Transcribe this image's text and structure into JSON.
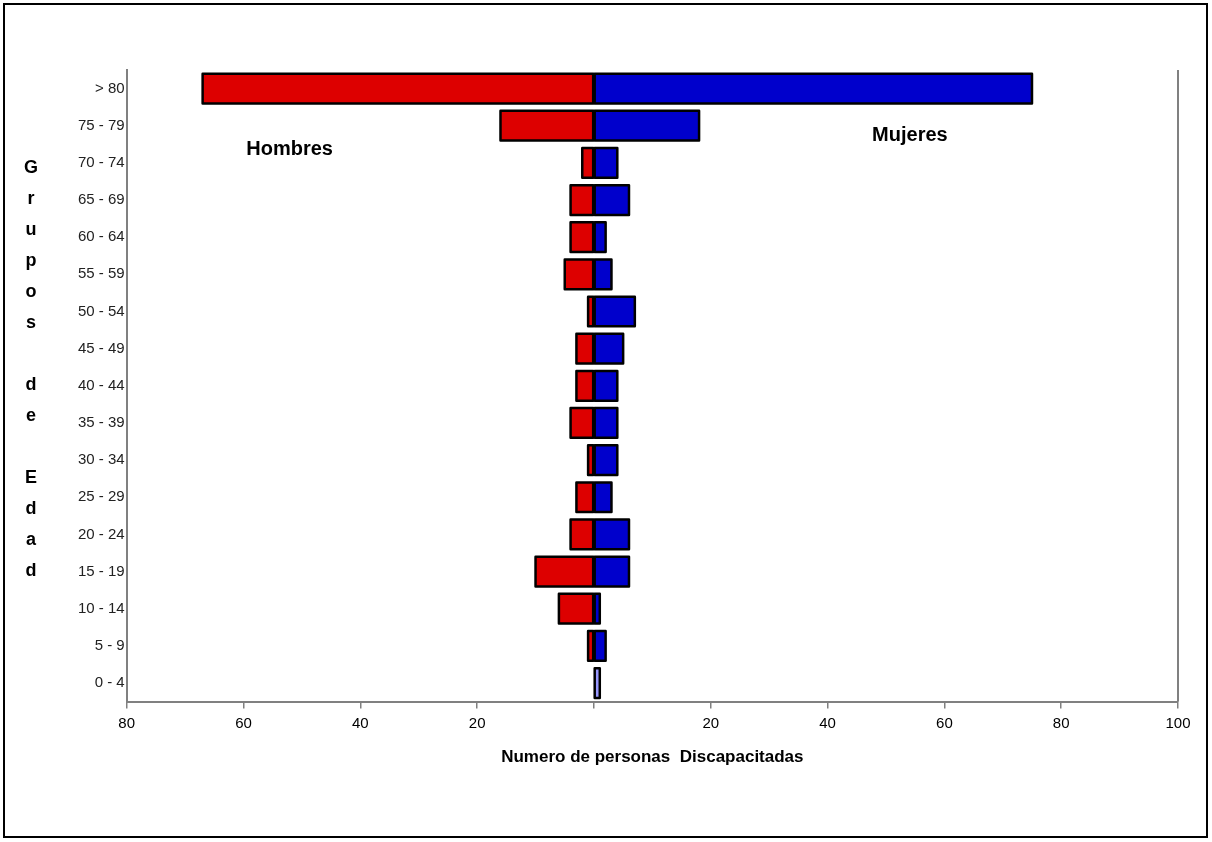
{
  "chart_data": {
    "type": "bar",
    "orientation": "horizontal",
    "stacked": true,
    "categories": [
      "> 80",
      "75 - 79",
      "70 - 74",
      "65 - 69",
      "60 - 64",
      "55 - 59",
      "50 - 54",
      "45 - 49",
      "40 - 44",
      "35 - 39",
      "30 - 34",
      "25 - 29",
      "20 - 24",
      "15 - 19",
      "10 - 14",
      "5 - 9",
      "0 - 4"
    ],
    "series": [
      {
        "name": "Hombres",
        "color": "#dd0000",
        "values": [
          -67,
          -16,
          -2,
          -4,
          -4,
          -5,
          -1,
          -3,
          -3,
          -4,
          -1,
          -3,
          -4,
          -10,
          -6,
          -1,
          0
        ]
      },
      {
        "name": "Mujeres",
        "colors": [
          "#0000cc",
          "#0000cc",
          "#0000cc",
          "#0000cc",
          "#0000cc",
          "#0000cc",
          "#0000cc",
          "#0000cc",
          "#0000cc",
          "#0000cc",
          "#0000cc",
          "#0000cc",
          "#0000cc",
          "#0000cc",
          "#0000cc",
          "#0000cc",
          "#9999ff"
        ],
        "values": [
          75,
          18,
          4,
          6,
          2,
          3,
          7,
          5,
          4,
          4,
          4,
          3,
          6,
          6,
          1,
          2,
          1
        ]
      }
    ],
    "xlabel": "Numero de personas  Discapacitadas",
    "ylabel": "Grupos de Edad",
    "xlim": [
      -80,
      100
    ],
    "xticks": [
      {
        "value": -80,
        "label": "80"
      },
      {
        "value": -60,
        "label": "60"
      },
      {
        "value": -40,
        "label": "40"
      },
      {
        "value": -20,
        "label": "20"
      },
      {
        "value": 0,
        "label": null
      },
      20,
      40,
      60,
      80,
      100
    ],
    "grid": false
  }
}
